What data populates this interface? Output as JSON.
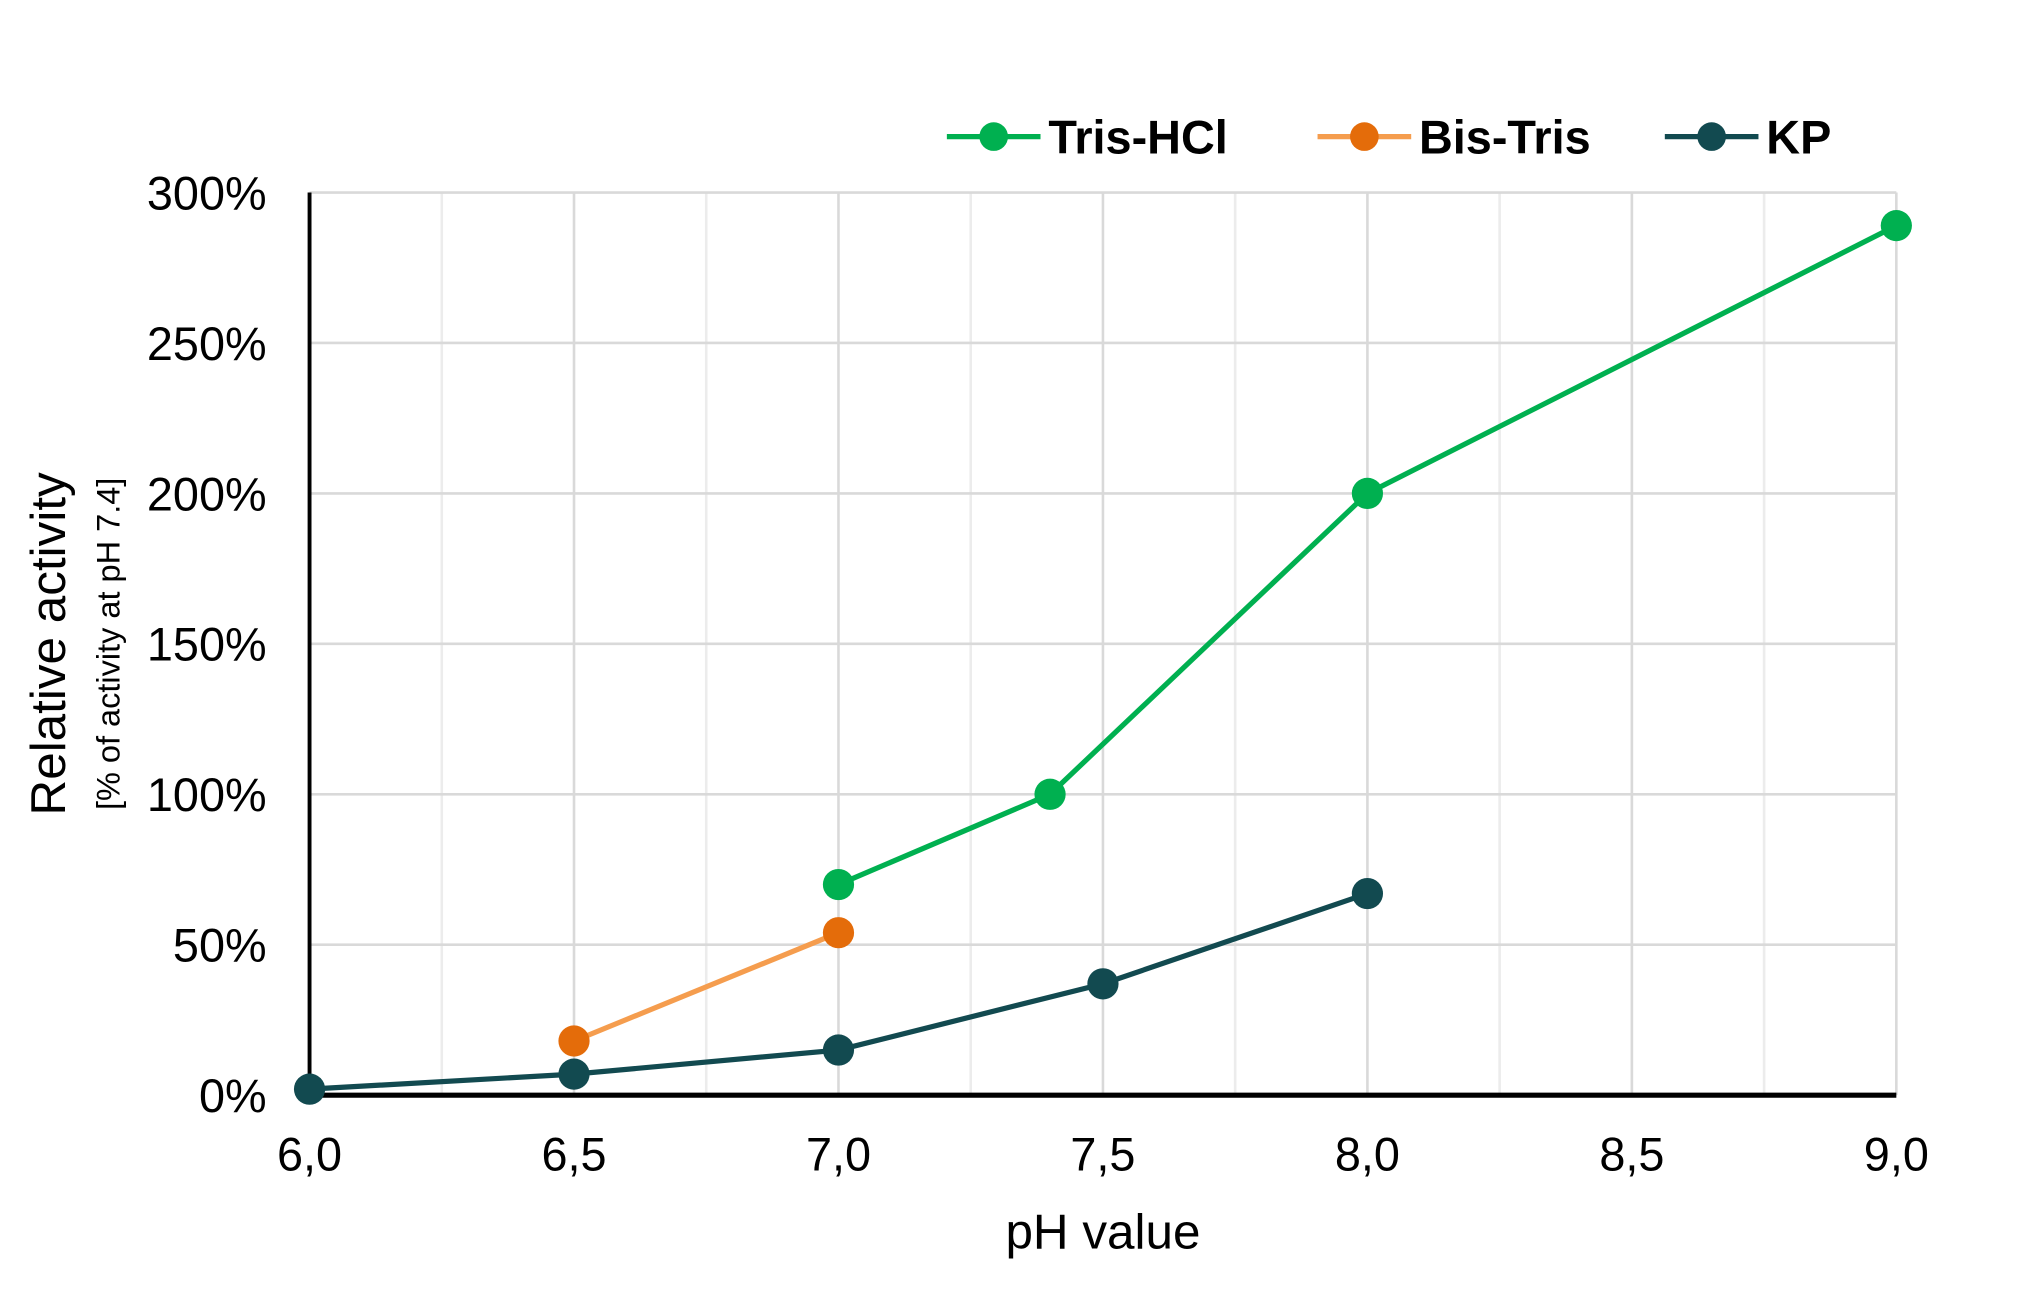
{
  "chart_data": {
    "type": "line",
    "title": "",
    "xlabel": "pH value",
    "ylabel": "Relative activity",
    "ylabel_sub": "[% of activity at pH 7.4]",
    "xlim": [
      6.0,
      9.0
    ],
    "ylim": [
      0,
      300
    ],
    "x_ticks": [
      "6,0",
      "6,5",
      "7,0",
      "7,5",
      "8,0",
      "8,5",
      "9,0"
    ],
    "y_ticks": [
      "0%",
      "50%",
      "100%",
      "150%",
      "200%",
      "250%",
      "300%"
    ],
    "grid": true,
    "legend_position": "top-right",
    "series": [
      {
        "name": "Tris-HCl",
        "color": "#00b050",
        "line_color": "#00b050",
        "x": [
          7.0,
          7.4,
          8.0,
          9.0
        ],
        "y": [
          70,
          100,
          200,
          289
        ]
      },
      {
        "name": "Bis-Tris",
        "color": "#e46c0a",
        "line_color": "#f59d4e",
        "x": [
          6.5,
          7.0
        ],
        "y": [
          18,
          54
        ]
      },
      {
        "name": "KP",
        "color": "#124a50",
        "line_color": "#124a50",
        "x": [
          6.0,
          6.5,
          7.0,
          7.5,
          8.0
        ],
        "y": [
          2,
          7,
          15,
          37,
          67
        ]
      }
    ]
  }
}
